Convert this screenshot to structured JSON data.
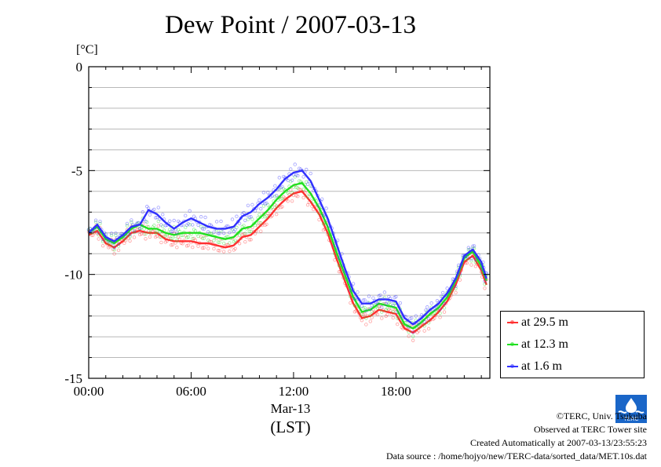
{
  "title": "Dew Point / 2007-03-13",
  "unit_label": "[°C]",
  "x_sublabel_date": "Mar-13",
  "x_sublabel_tz": "(LST)",
  "legend": [
    {
      "label": "at 29.5 m",
      "color": "#ff3030"
    },
    {
      "label": "at 12.3 m",
      "color": "#20e020"
    },
    {
      "label": "at 1.6 m",
      "color": "#3030ff"
    }
  ],
  "footer": {
    "copyright": "©TERC, Univ. Tsukuba",
    "site": "Observed at TERC Tower site",
    "created": "Created Automatically at 2007-03-13/23:55:23",
    "source": "Data source : /home/hojyo/new/TERC-data/sorted_data/MET.10s.dat"
  },
  "logo_text": "TERC",
  "chart_data": {
    "type": "line",
    "title": "Dew Point / 2007-03-13",
    "ylabel": "[°C]",
    "xlabel": "(LST)",
    "x_ticks": [
      "00:00",
      "06:00",
      "12:00",
      "18:00"
    ],
    "x_tick_hours": [
      0,
      6,
      12,
      18
    ],
    "y_ticks": [
      0,
      -5,
      -10,
      -15
    ],
    "xlim": [
      0,
      23.5
    ],
    "ylim": [
      -15,
      0
    ],
    "grid": true,
    "legend_position": "bottom-right",
    "x": [
      0,
      0.5,
      1,
      1.5,
      2,
      2.5,
      3,
      3.5,
      4,
      4.5,
      5,
      5.5,
      6,
      6.5,
      7,
      7.5,
      8,
      8.5,
      9,
      9.5,
      10,
      10.5,
      11,
      11.5,
      12,
      12.5,
      13,
      13.5,
      14,
      14.5,
      15,
      15.5,
      16,
      16.5,
      17,
      17.5,
      18,
      18.5,
      19,
      19.5,
      20,
      20.5,
      21,
      21.5,
      22,
      22.5,
      23,
      23.3
    ],
    "series": [
      {
        "name": "at 29.5 m",
        "color": "#ff3030",
        "values": [
          -8.1,
          -7.9,
          -8.5,
          -8.7,
          -8.4,
          -8.0,
          -7.9,
          -8.0,
          -8.0,
          -8.3,
          -8.4,
          -8.4,
          -8.4,
          -8.5,
          -8.5,
          -8.6,
          -8.7,
          -8.6,
          -8.2,
          -8.1,
          -7.7,
          -7.3,
          -6.8,
          -6.4,
          -6.1,
          -6.0,
          -6.5,
          -7.1,
          -8.0,
          -9.2,
          -10.3,
          -11.4,
          -12.1,
          -12.0,
          -11.7,
          -11.8,
          -11.9,
          -12.6,
          -12.8,
          -12.5,
          -12.2,
          -11.8,
          -11.3,
          -10.5,
          -9.4,
          -9.1,
          -9.8,
          -10.5
        ]
      },
      {
        "name": "at 12.3 m",
        "color": "#20e020",
        "values": [
          -8.0,
          -7.7,
          -8.3,
          -8.5,
          -8.2,
          -7.8,
          -7.6,
          -7.8,
          -7.8,
          -8.0,
          -8.1,
          -8.0,
          -8.0,
          -8.0,
          -8.1,
          -8.2,
          -8.3,
          -8.2,
          -7.8,
          -7.7,
          -7.3,
          -6.9,
          -6.4,
          -6.0,
          -5.7,
          -5.6,
          -6.1,
          -6.8,
          -7.7,
          -8.9,
          -10.0,
          -11.1,
          -11.8,
          -11.7,
          -11.4,
          -11.5,
          -11.6,
          -12.4,
          -12.6,
          -12.3,
          -11.9,
          -11.6,
          -11.1,
          -10.3,
          -9.2,
          -8.9,
          -9.6,
          -10.3
        ]
      },
      {
        "name": "at 1.6 m",
        "color": "#3030ff",
        "values": [
          -8.0,
          -7.6,
          -8.2,
          -8.4,
          -8.1,
          -7.7,
          -7.6,
          -6.9,
          -7.1,
          -7.5,
          -7.8,
          -7.5,
          -7.3,
          -7.5,
          -7.7,
          -7.8,
          -7.8,
          -7.7,
          -7.2,
          -7.0,
          -6.6,
          -6.3,
          -5.9,
          -5.4,
          -5.1,
          -5.0,
          -5.5,
          -6.4,
          -7.3,
          -8.5,
          -9.7,
          -10.8,
          -11.4,
          -11.4,
          -11.2,
          -11.2,
          -11.3,
          -12.1,
          -12.4,
          -12.1,
          -11.7,
          -11.4,
          -10.9,
          -10.2,
          -9.1,
          -8.8,
          -9.4,
          -10.2
        ]
      }
    ]
  }
}
